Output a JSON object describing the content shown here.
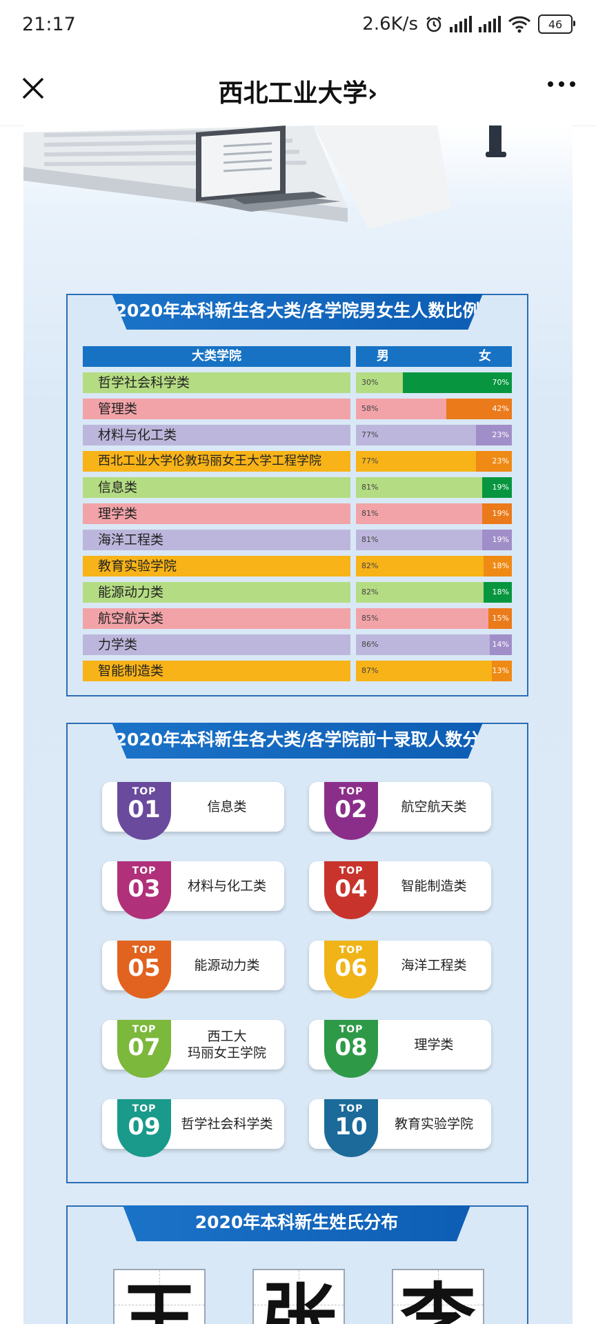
{
  "status_bar": {
    "time": "21:17",
    "network_speed": "2.6K/s",
    "battery": "46"
  },
  "nav": {
    "title": "西北工业大学",
    "title_chevron": "›"
  },
  "ratio_table": {
    "title": "2020年本科新生各大类/各学院男女生人数比例",
    "col_college": "大类学院",
    "col_male": "男",
    "col_female": "女",
    "rows": [
      {
        "name": "哲学社会科学类",
        "male": "30%",
        "female": "70%",
        "male_frac": 0.3,
        "color": "#b4dc82",
        "fcolor": "#07963f"
      },
      {
        "name": "管理类",
        "male": "58%",
        "female": "42%",
        "male_frac": 0.58,
        "color": "#f2a3a8",
        "fcolor": "#ea7a1a"
      },
      {
        "name": "材料与化工类",
        "male": "77%",
        "female": "23%",
        "male_frac": 0.77,
        "color": "#bdb6dc",
        "fcolor": "#a08ec8"
      },
      {
        "name": "西北工业大学伦敦玛丽女王大学工程学院",
        "male": "77%",
        "female": "23%",
        "male_frac": 0.77,
        "color": "#f7b318",
        "fcolor": "#ef8a14"
      },
      {
        "name": "信息类",
        "male": "81%",
        "female": "19%",
        "male_frac": 0.81,
        "color": "#b4dc82",
        "fcolor": "#07963f"
      },
      {
        "name": "理学类",
        "male": "81%",
        "female": "19%",
        "male_frac": 0.81,
        "color": "#f2a3a8",
        "fcolor": "#ea7a1a"
      },
      {
        "name": "海洋工程类",
        "male": "81%",
        "female": "19%",
        "male_frac": 0.81,
        "color": "#bdb6dc",
        "fcolor": "#a08ec8"
      },
      {
        "name": "教育实验学院",
        "male": "82%",
        "female": "18%",
        "male_frac": 0.82,
        "color": "#f7b318",
        "fcolor": "#ef8a14"
      },
      {
        "name": "能源动力类",
        "male": "82%",
        "female": "18%",
        "male_frac": 0.82,
        "color": "#b4dc82",
        "fcolor": "#07963f"
      },
      {
        "name": "航空航天类",
        "male": "85%",
        "female": "15%",
        "male_frac": 0.85,
        "color": "#f2a3a8",
        "fcolor": "#ea7a1a"
      },
      {
        "name": "力学类",
        "male": "86%",
        "female": "14%",
        "male_frac": 0.86,
        "color": "#bdb6dc",
        "fcolor": "#a08ec8"
      },
      {
        "name": "智能制造类",
        "male": "87%",
        "female": "13%",
        "male_frac": 0.87,
        "color": "#f7b318",
        "fcolor": "#ef8a14"
      }
    ]
  },
  "top_ten": {
    "title": "2020年本科新生各大类/各学院前十录取人数分布",
    "badge_prefix": "TOP",
    "items": [
      {
        "num": "01",
        "label": "信息类",
        "color": "#6a4a9c"
      },
      {
        "num": "02",
        "label": "航空航天类",
        "color": "#8b2e8a"
      },
      {
        "num": "03",
        "label": "材料与化工类",
        "color": "#b0307a"
      },
      {
        "num": "04",
        "label": "智能制造类",
        "color": "#c8342c"
      },
      {
        "num": "05",
        "label": "能源动力类",
        "color": "#e1631f"
      },
      {
        "num": "06",
        "label": "海洋工程类",
        "color": "#f0b418"
      },
      {
        "num": "07",
        "label": "西工大\n玛丽女王学院",
        "color": "#7cb83c"
      },
      {
        "num": "08",
        "label": "理学类",
        "color": "#2e9a48"
      },
      {
        "num": "09",
        "label": "哲学社会科学类",
        "color": "#1a9a8a"
      },
      {
        "num": "10",
        "label": "教育实验学院",
        "color": "#1b6a9a"
      }
    ]
  },
  "surnames": {
    "title": "2020年本科新生姓氏分布",
    "items": [
      "王",
      "张",
      "李"
    ]
  }
}
